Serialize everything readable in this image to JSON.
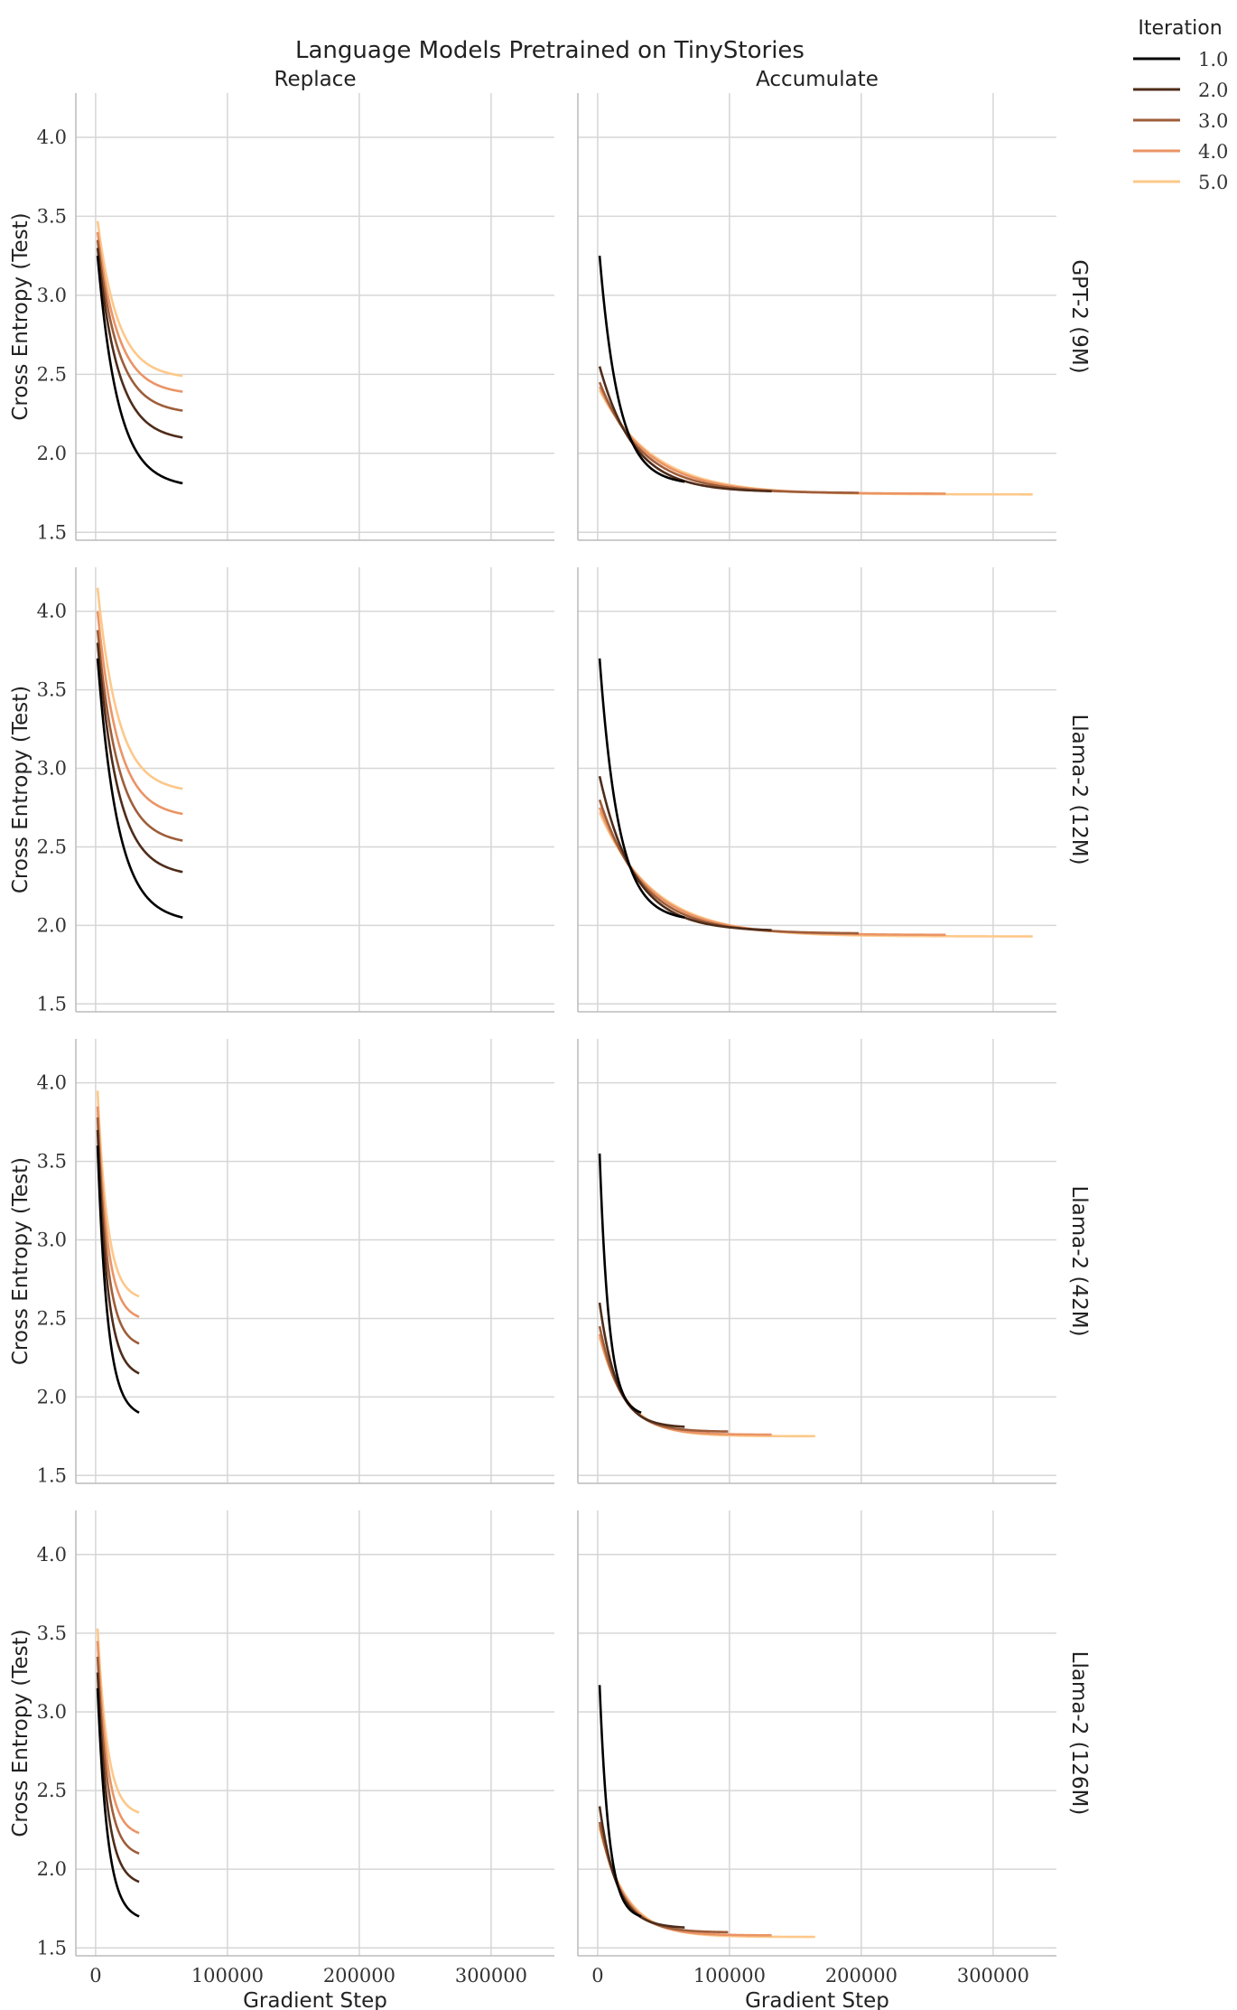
{
  "chart_data": {
    "type": "line",
    "title": "Language Models Pretrained on TinyStories",
    "columns": [
      "Replace",
      "Accumulate"
    ],
    "rows": [
      "GPT-2 (9M)",
      "Llama-2 (12M)",
      "Llama-2 (42M)",
      "Llama-2 (126M)"
    ],
    "xlabel": "Gradient Step",
    "ylabel": "Cross Entropy (Test)",
    "xlim": [
      -15000,
      348000
    ],
    "ylim": [
      1.45,
      4.28
    ],
    "xticks": [
      0,
      100000,
      200000,
      300000
    ],
    "xtick_labels": [
      "0",
      "100000",
      "200000",
      "300000"
    ],
    "yticks": [
      1.5,
      2.0,
      2.5,
      3.0,
      3.5,
      4.0
    ],
    "ytick_labels": [
      "1.5",
      "2.0",
      "2.5",
      "3.0",
      "3.5",
      "4.0"
    ],
    "grid": true,
    "legend": {
      "title": "Iteration",
      "placement": "top-right",
      "entries": [
        "1.0",
        "2.0",
        "3.0",
        "4.0",
        "5.0"
      ],
      "colors": [
        "#000000",
        "#4e2c1a",
        "#9e5e3a",
        "#ea9466",
        "#fdc88a"
      ]
    },
    "panels": [
      {
        "row": 0,
        "col": 0,
        "series": [
          {
            "iteration": "1.0",
            "start": 3.25,
            "end": 1.81,
            "x_end": 66000,
            "k": 4.2
          },
          {
            "iteration": "2.0",
            "start": 3.3,
            "end": 2.1,
            "x_end": 66000,
            "k": 4.2
          },
          {
            "iteration": "3.0",
            "start": 3.35,
            "end": 2.27,
            "x_end": 66000,
            "k": 4.2
          },
          {
            "iteration": "4.0",
            "start": 3.4,
            "end": 2.39,
            "x_end": 66000,
            "k": 4.2
          },
          {
            "iteration": "5.0",
            "start": 3.47,
            "end": 2.49,
            "x_end": 66000,
            "k": 4.2
          }
        ]
      },
      {
        "row": 0,
        "col": 1,
        "series": [
          {
            "iteration": "1.0",
            "start": 3.25,
            "end": 1.82,
            "x_end": 66000,
            "k": 4.5
          },
          {
            "iteration": "2.0",
            "start": 2.55,
            "end": 1.76,
            "x_end": 132000,
            "k": 5
          },
          {
            "iteration": "3.0",
            "start": 2.45,
            "end": 1.75,
            "x_end": 198000,
            "k": 6
          },
          {
            "iteration": "4.0",
            "start": 2.42,
            "end": 1.745,
            "x_end": 264000,
            "k": 7
          },
          {
            "iteration": "5.0",
            "start": 2.4,
            "end": 1.74,
            "x_end": 330000,
            "k": 8
          }
        ]
      },
      {
        "row": 1,
        "col": 0,
        "series": [
          {
            "iteration": "1.0",
            "start": 3.7,
            "end": 2.05,
            "x_end": 66000,
            "k": 4.2
          },
          {
            "iteration": "2.0",
            "start": 3.8,
            "end": 2.34,
            "x_end": 66000,
            "k": 4.2
          },
          {
            "iteration": "3.0",
            "start": 3.88,
            "end": 2.54,
            "x_end": 66000,
            "k": 4.2
          },
          {
            "iteration": "4.0",
            "start": 4.0,
            "end": 2.71,
            "x_end": 66000,
            "k": 4.2
          },
          {
            "iteration": "5.0",
            "start": 4.15,
            "end": 2.87,
            "x_end": 66000,
            "k": 4.2
          }
        ]
      },
      {
        "row": 1,
        "col": 1,
        "series": [
          {
            "iteration": "1.0",
            "start": 3.7,
            "end": 2.05,
            "x_end": 66000,
            "k": 4.5
          },
          {
            "iteration": "2.0",
            "start": 2.95,
            "end": 1.97,
            "x_end": 132000,
            "k": 5
          },
          {
            "iteration": "3.0",
            "start": 2.8,
            "end": 1.95,
            "x_end": 198000,
            "k": 6
          },
          {
            "iteration": "4.0",
            "start": 2.75,
            "end": 1.94,
            "x_end": 264000,
            "k": 7
          },
          {
            "iteration": "5.0",
            "start": 2.72,
            "end": 1.93,
            "x_end": 330000,
            "k": 8
          }
        ]
      },
      {
        "row": 2,
        "col": 0,
        "series": [
          {
            "iteration": "1.0",
            "start": 3.6,
            "end": 1.9,
            "x_end": 33000,
            "k": 4.2
          },
          {
            "iteration": "2.0",
            "start": 3.7,
            "end": 2.15,
            "x_end": 33000,
            "k": 4.2
          },
          {
            "iteration": "3.0",
            "start": 3.78,
            "end": 2.34,
            "x_end": 33000,
            "k": 4.2
          },
          {
            "iteration": "4.0",
            "start": 3.85,
            "end": 2.51,
            "x_end": 33000,
            "k": 4.2
          },
          {
            "iteration": "5.0",
            "start": 3.95,
            "end": 2.64,
            "x_end": 33000,
            "k": 4.2
          }
        ]
      },
      {
        "row": 2,
        "col": 1,
        "series": [
          {
            "iteration": "1.0",
            "start": 3.55,
            "end": 1.9,
            "x_end": 33000,
            "k": 4.5
          },
          {
            "iteration": "2.0",
            "start": 2.6,
            "end": 1.81,
            "x_end": 66000,
            "k": 5
          },
          {
            "iteration": "3.0",
            "start": 2.45,
            "end": 1.78,
            "x_end": 99000,
            "k": 6
          },
          {
            "iteration": "4.0",
            "start": 2.4,
            "end": 1.76,
            "x_end": 132000,
            "k": 7
          },
          {
            "iteration": "5.0",
            "start": 2.38,
            "end": 1.75,
            "x_end": 165000,
            "k": 8
          }
        ]
      },
      {
        "row": 3,
        "col": 0,
        "series": [
          {
            "iteration": "1.0",
            "start": 3.15,
            "end": 1.7,
            "x_end": 33000,
            "k": 4.2
          },
          {
            "iteration": "2.0",
            "start": 3.25,
            "end": 1.92,
            "x_end": 33000,
            "k": 4.2
          },
          {
            "iteration": "3.0",
            "start": 3.35,
            "end": 2.1,
            "x_end": 33000,
            "k": 4.2
          },
          {
            "iteration": "4.0",
            "start": 3.45,
            "end": 2.23,
            "x_end": 33000,
            "k": 4.2
          },
          {
            "iteration": "5.0",
            "start": 3.53,
            "end": 2.36,
            "x_end": 33000,
            "k": 4.2
          }
        ]
      },
      {
        "row": 3,
        "col": 1,
        "series": [
          {
            "iteration": "1.0",
            "start": 3.17,
            "end": 1.7,
            "x_end": 33000,
            "k": 4.5
          },
          {
            "iteration": "2.0",
            "start": 2.4,
            "end": 1.63,
            "x_end": 66000,
            "k": 5
          },
          {
            "iteration": "3.0",
            "start": 2.3,
            "end": 1.6,
            "x_end": 99000,
            "k": 6
          },
          {
            "iteration": "4.0",
            "start": 2.28,
            "end": 1.58,
            "x_end": 132000,
            "k": 7
          },
          {
            "iteration": "5.0",
            "start": 2.26,
            "end": 1.57,
            "x_end": 165000,
            "k": 8
          }
        ]
      }
    ]
  }
}
